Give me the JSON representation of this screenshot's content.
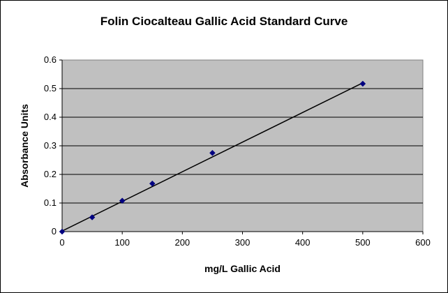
{
  "chart_data": {
    "type": "scatter",
    "title": "Folin Ciocalteau Gallic Acid Standard Curve",
    "xlabel": "mg/L Gallic Acid",
    "ylabel": "Absorbance Units",
    "xlim": [
      0,
      600
    ],
    "ylim": [
      0,
      0.6
    ],
    "xticks": [
      0,
      100,
      200,
      300,
      400,
      500,
      600
    ],
    "yticks": [
      0,
      0.1,
      0.2,
      0.3,
      0.4,
      0.5,
      0.6
    ],
    "grid": "horizontal",
    "legend": "none",
    "series": [
      {
        "x": [
          0,
          50,
          100,
          150,
          250,
          500
        ],
        "y": [
          0,
          0.05,
          0.108,
          0.168,
          0.275,
          0.517
        ],
        "color": "#000080",
        "marker": "diamond"
      }
    ],
    "trendline": {
      "type": "linear",
      "x": [
        0,
        500
      ],
      "y": [
        0.002,
        0.52
      ],
      "color": "#000000"
    },
    "colors": {
      "plot_background": "#c0c0c0",
      "gridline": "#000000"
    }
  }
}
